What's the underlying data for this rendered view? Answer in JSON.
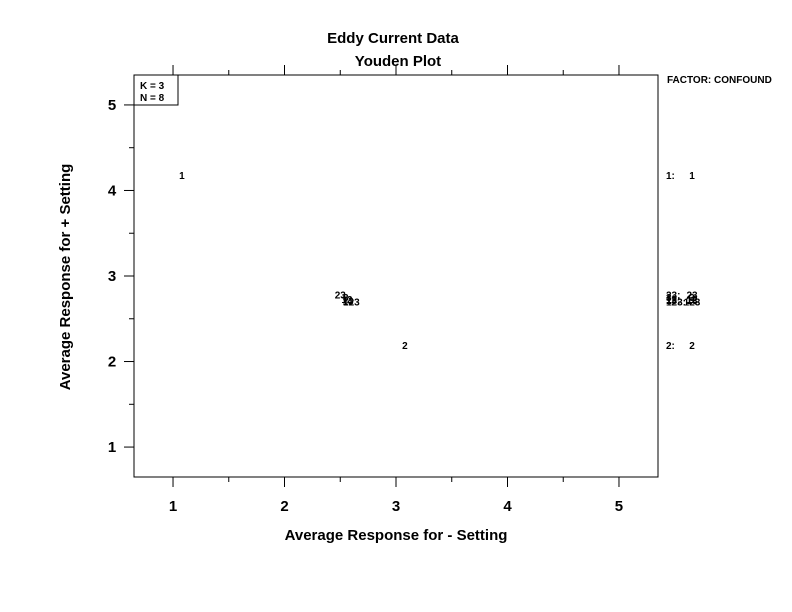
{
  "chart_data": {
    "type": "scatter",
    "title": "Eddy Current Data",
    "subtitle": "Youden Plot",
    "xlabel": "Average Response for  -  Setting",
    "ylabel": "Average Response for  +  Setting",
    "xlim": [
      0.65,
      5.35
    ],
    "ylim": [
      0.65,
      5.35
    ],
    "xticks": [
      1,
      2,
      3,
      4,
      5
    ],
    "yticks": [
      1,
      2,
      3,
      4,
      5
    ],
    "xtick_labels": [
      "1",
      "2",
      "3",
      "4",
      "5"
    ],
    "ytick_labels": [
      "1",
      "2",
      "3",
      "4",
      "5"
    ],
    "grid": false,
    "info_box": [
      "K = 3",
      "N = 8"
    ],
    "legend_title": "FACTOR: CONFOUND",
    "points": [
      {
        "label": "1",
        "x": 1.08,
        "y": 4.17
      },
      {
        "label": "2",
        "x": 3.08,
        "y": 2.18
      },
      {
        "label": "23",
        "x": 2.5,
        "y": 2.77
      },
      {
        "label": "3",
        "x": 2.55,
        "y": 2.74
      },
      {
        "label": "12",
        "x": 2.56,
        "y": 2.72
      },
      {
        "label": "13",
        "x": 2.57,
        "y": 2.7
      },
      {
        "label": "123",
        "x": 2.6,
        "y": 2.69
      }
    ],
    "legend_entries": [
      {
        "key": "1:",
        "label": "1",
        "y": 4.17
      },
      {
        "key": "23:",
        "label": "23",
        "y": 2.77
      },
      {
        "key": "3:",
        "label": "3",
        "y": 2.74
      },
      {
        "key": "12:",
        "label": "12",
        "y": 2.72
      },
      {
        "key": "13:",
        "label": "13",
        "y": 2.71
      },
      {
        "key": "123:",
        "label": "123",
        "y": 2.69
      },
      {
        "key": "2:",
        "label": "2",
        "y": 2.18
      }
    ]
  }
}
